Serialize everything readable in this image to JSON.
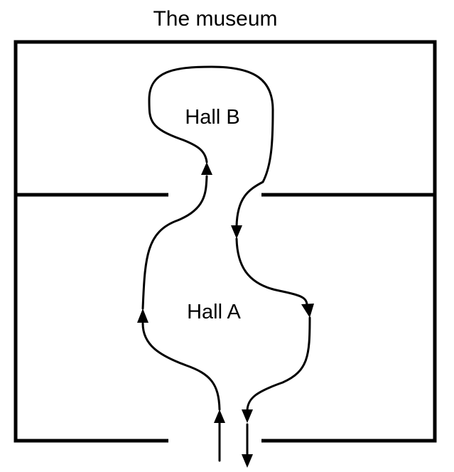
{
  "diagram": {
    "title": "The museum",
    "halls": [
      {
        "label": "Hall B"
      },
      {
        "label": "Hall A"
      }
    ],
    "colors": {
      "stroke": "#000000",
      "background": "#ffffff"
    }
  }
}
